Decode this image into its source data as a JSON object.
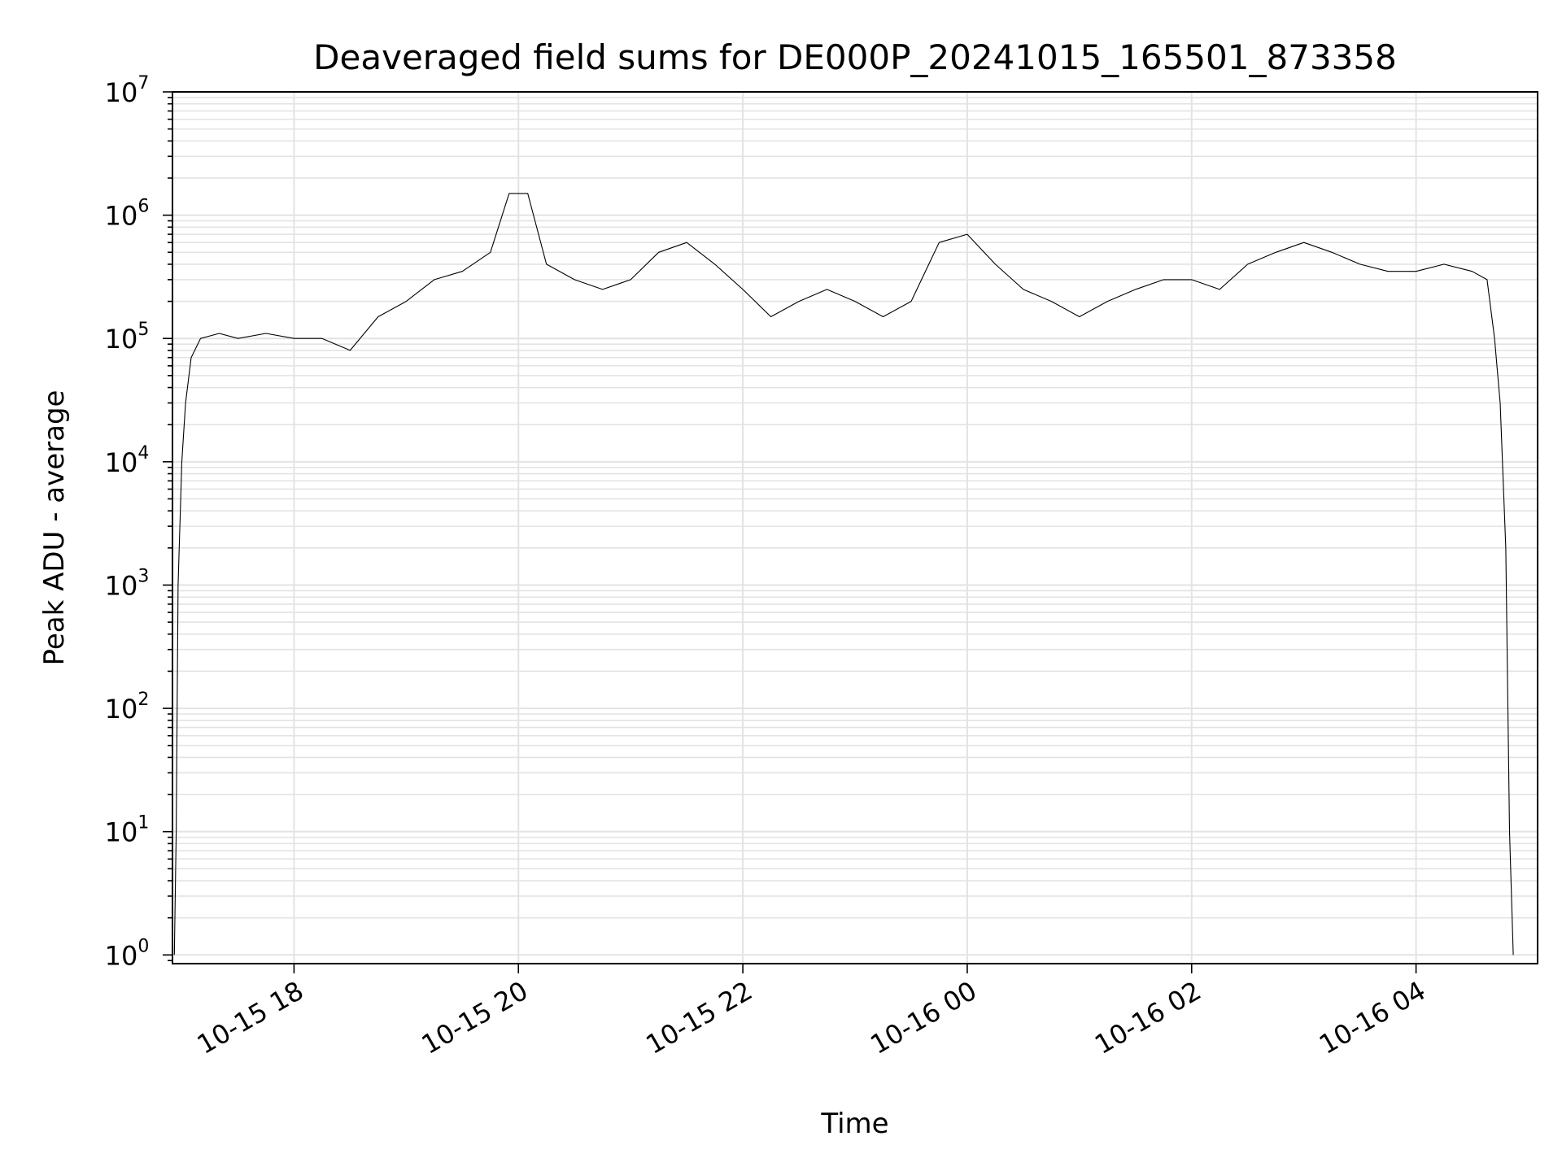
{
  "chart_data": {
    "type": "line",
    "title": "Deaveraged field sums for DE000P_20241015_165501_873358",
    "xlabel": "Time",
    "ylabel": "Peak ADU - average",
    "x_scale": "time",
    "y_scale": "log",
    "xlim": [
      "2024-10-15 16:55",
      "2024-10-16 05:05"
    ],
    "ylim": [
      0.85,
      10000000
    ],
    "grid": true,
    "x_ticks": [
      {
        "value": "2024-10-15 18:00",
        "label": "10-15 18"
      },
      {
        "value": "2024-10-15 20:00",
        "label": "10-15 20"
      },
      {
        "value": "2024-10-15 22:00",
        "label": "10-15 22"
      },
      {
        "value": "2024-10-16 00:00",
        "label": "10-16 00"
      },
      {
        "value": "2024-10-16 02:00",
        "label": "10-16 02"
      },
      {
        "value": "2024-10-16 04:00",
        "label": "10-16 04"
      }
    ],
    "y_ticks": [
      {
        "value": 1,
        "base": "10",
        "exp": "0"
      },
      {
        "value": 10,
        "base": "10",
        "exp": "1"
      },
      {
        "value": 100,
        "base": "10",
        "exp": "2"
      },
      {
        "value": 1000,
        "base": "10",
        "exp": "3"
      },
      {
        "value": 10000,
        "base": "10",
        "exp": "4"
      },
      {
        "value": 100000,
        "base": "10",
        "exp": "5"
      },
      {
        "value": 1000000,
        "base": "10",
        "exp": "6"
      },
      {
        "value": 10000000,
        "base": "10",
        "exp": "7"
      }
    ],
    "series": [
      {
        "color": "#000000",
        "x": [
          "2024-10-15 16:56",
          "2024-10-15 16:57",
          "2024-10-15 16:58",
          "2024-10-15 17:00",
          "2024-10-15 17:02",
          "2024-10-15 17:05",
          "2024-10-15 17:10",
          "2024-10-15 17:20",
          "2024-10-15 17:30",
          "2024-10-15 17:45",
          "2024-10-15 18:00",
          "2024-10-15 18:15",
          "2024-10-15 18:30",
          "2024-10-15 18:45",
          "2024-10-15 19:00",
          "2024-10-15 19:15",
          "2024-10-15 19:30",
          "2024-10-15 19:45",
          "2024-10-15 19:55",
          "2024-10-15 20:05",
          "2024-10-15 20:15",
          "2024-10-15 20:30",
          "2024-10-15 20:45",
          "2024-10-15 21:00",
          "2024-10-15 21:15",
          "2024-10-15 21:30",
          "2024-10-15 21:45",
          "2024-10-15 22:00",
          "2024-10-15 22:15",
          "2024-10-15 22:30",
          "2024-10-15 22:45",
          "2024-10-15 23:00",
          "2024-10-15 23:15",
          "2024-10-15 23:30",
          "2024-10-15 23:45",
          "2024-10-16 00:00",
          "2024-10-16 00:15",
          "2024-10-16 00:30",
          "2024-10-16 00:45",
          "2024-10-16 01:00",
          "2024-10-16 01:15",
          "2024-10-16 01:30",
          "2024-10-16 01:45",
          "2024-10-16 02:00",
          "2024-10-16 02:15",
          "2024-10-16 02:30",
          "2024-10-16 02:45",
          "2024-10-16 03:00",
          "2024-10-16 03:15",
          "2024-10-16 03:30",
          "2024-10-16 03:45",
          "2024-10-16 04:00",
          "2024-10-16 04:15",
          "2024-10-16 04:30",
          "2024-10-16 04:38",
          "2024-10-16 04:42",
          "2024-10-16 04:45",
          "2024-10-16 04:48",
          "2024-10-16 04:50",
          "2024-10-16 04:52"
        ],
        "y": [
          1,
          10,
          1000,
          10000,
          30000,
          70000,
          100000,
          110000,
          100000,
          110000,
          100000,
          100000,
          80000,
          150000,
          200000,
          300000,
          350000,
          500000,
          1500000,
          1500000,
          400000,
          300000,
          250000,
          300000,
          500000,
          600000,
          400000,
          250000,
          150000,
          200000,
          250000,
          200000,
          150000,
          200000,
          600000,
          700000,
          400000,
          250000,
          200000,
          150000,
          200000,
          250000,
          300000,
          300000,
          250000,
          400000,
          500000,
          600000,
          500000,
          400000,
          350000,
          350000,
          400000,
          350000,
          300000,
          100000,
          30000,
          2000,
          10,
          1
        ]
      }
    ]
  }
}
